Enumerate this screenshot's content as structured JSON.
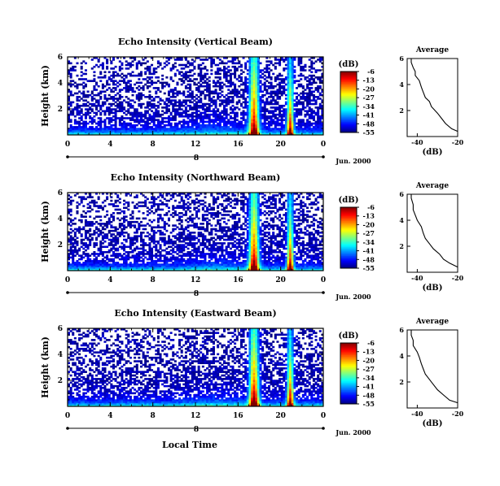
{
  "chart_data": [
    {
      "type": "heatmap",
      "title": "Echo Intensity (Vertical Beam)",
      "ylabel": "Height (km)",
      "xlabel": "",
      "xlim": [
        0,
        24
      ],
      "ylim": [
        0,
        6
      ],
      "xticks": [
        "0",
        "4",
        "8",
        "12",
        "16",
        "20",
        "0"
      ],
      "yticks": [
        "6",
        "4",
        "2"
      ],
      "date_label": "8",
      "date_text": "Jun. 2000",
      "colorbar": {
        "unit": "(dB)",
        "ticks": [
          "-6",
          "-13",
          "-20",
          "-27",
          "-34",
          "-41",
          "-48",
          "-55"
        ],
        "range": [
          -55,
          -6
        ]
      },
      "average": {
        "title": "Average",
        "xlabel": "(dB)",
        "xticks": [
          "-40",
          "-20"
        ],
        "yticks": [
          "6",
          "4",
          "2"
        ],
        "xlim": [
          -45,
          -20
        ],
        "ylim": [
          0,
          6
        ],
        "h": [
          6.0,
          5.7,
          5.3,
          5.0,
          4.7,
          4.3,
          3.8,
          3.4,
          3.0,
          2.7,
          2.3,
          1.8,
          1.4,
          1.0,
          0.6,
          0.4
        ],
        "db": [
          -43,
          -43,
          -42,
          -41,
          -41,
          -39,
          -38,
          -37,
          -36,
          -34,
          -33,
          -30,
          -28,
          -26,
          -23,
          -20
        ]
      }
    },
    {
      "type": "heatmap",
      "title": "Echo Intensity (Northward Beam)",
      "ylabel": "Height (km)",
      "xlabel": "",
      "xlim": [
        0,
        24
      ],
      "ylim": [
        0,
        6
      ],
      "xticks": [
        "0",
        "4",
        "8",
        "12",
        "16",
        "20",
        "0"
      ],
      "yticks": [
        "6",
        "4",
        "2"
      ],
      "date_label": "8",
      "date_text": "Jun. 2000",
      "colorbar": {
        "unit": "(dB)",
        "ticks": [
          "-6",
          "-13",
          "-20",
          "-27",
          "-34",
          "-41",
          "-48",
          "-55"
        ],
        "range": [
          -55,
          -6
        ]
      },
      "average": {
        "title": "Average",
        "xlabel": "(dB)",
        "xticks": [
          "-40",
          "-20"
        ],
        "yticks": [
          "6",
          "4",
          "2"
        ],
        "xlim": [
          -45,
          -20
        ],
        "ylim": [
          0,
          6
        ],
        "h": [
          6.0,
          5.7,
          5.2,
          4.8,
          4.4,
          4.0,
          3.5,
          3.0,
          2.6,
          2.2,
          1.8,
          1.4,
          1.0,
          0.7,
          0.4
        ],
        "db": [
          -43,
          -43,
          -42,
          -42,
          -41,
          -40,
          -38,
          -37,
          -36,
          -34,
          -32,
          -29,
          -27,
          -24,
          -20
        ]
      }
    },
    {
      "type": "heatmap",
      "title": "Echo Intensity (Eastward Beam)",
      "ylabel": "Height (km)",
      "xlabel": "Local Time",
      "xlim": [
        0,
        24
      ],
      "ylim": [
        0,
        6
      ],
      "xticks": [
        "0",
        "4",
        "8",
        "12",
        "16",
        "20",
        "0"
      ],
      "yticks": [
        "6",
        "4",
        "2"
      ],
      "date_label": "8",
      "date_text": "Jun. 2000",
      "colorbar": {
        "unit": "(dB)",
        "ticks": [
          "-6",
          "-13",
          "-20",
          "-27",
          "-34",
          "-41",
          "-48",
          "-55"
        ],
        "range": [
          -55,
          -6
        ]
      },
      "average": {
        "title": "Average",
        "xlabel": "(dB)",
        "xticks": [
          "-40",
          "-20"
        ],
        "yticks": [
          "6",
          "4",
          "2"
        ],
        "xlim": [
          -45,
          -20
        ],
        "ylim": [
          0,
          6
        ],
        "h": [
          6.0,
          5.6,
          5.2,
          4.8,
          4.3,
          3.9,
          3.4,
          3.0,
          2.6,
          2.2,
          1.8,
          1.4,
          1.0,
          0.6,
          0.4
        ],
        "db": [
          -43,
          -43,
          -42,
          -42,
          -40,
          -39,
          -38,
          -37,
          -36,
          -34,
          -32,
          -30,
          -27,
          -24,
          -20
        ]
      }
    }
  ]
}
